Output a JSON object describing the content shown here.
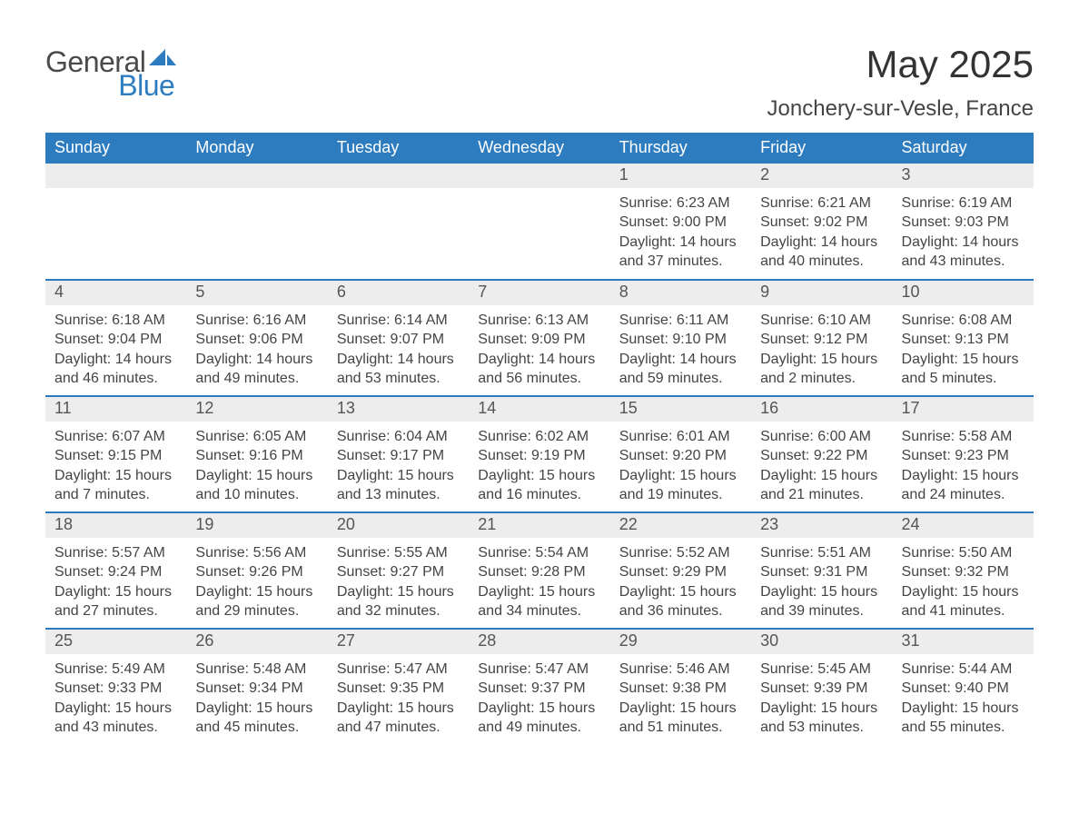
{
  "brand": {
    "word1": "General",
    "word2": "Blue",
    "icon_color": "#2d7cc0"
  },
  "title": "May 2025",
  "location": "Jonchery-sur-Vesle, France",
  "colors": {
    "header_bg": "#2d7cc0",
    "header_text": "#ffffff",
    "daynum_bg": "#ededed",
    "daynum_text": "#555555",
    "body_text": "#444444",
    "row_divider": "#2d7cc0",
    "page_bg": "#ffffff"
  },
  "day_headers": [
    "Sunday",
    "Monday",
    "Tuesday",
    "Wednesday",
    "Thursday",
    "Friday",
    "Saturday"
  ],
  "weeks": [
    [
      null,
      null,
      null,
      null,
      {
        "n": "1",
        "sunrise": "6:23 AM",
        "sunset": "9:00 PM",
        "dl_h": 14,
        "dl_m": 37
      },
      {
        "n": "2",
        "sunrise": "6:21 AM",
        "sunset": "9:02 PM",
        "dl_h": 14,
        "dl_m": 40
      },
      {
        "n": "3",
        "sunrise": "6:19 AM",
        "sunset": "9:03 PM",
        "dl_h": 14,
        "dl_m": 43
      }
    ],
    [
      {
        "n": "4",
        "sunrise": "6:18 AM",
        "sunset": "9:04 PM",
        "dl_h": 14,
        "dl_m": 46
      },
      {
        "n": "5",
        "sunrise": "6:16 AM",
        "sunset": "9:06 PM",
        "dl_h": 14,
        "dl_m": 49
      },
      {
        "n": "6",
        "sunrise": "6:14 AM",
        "sunset": "9:07 PM",
        "dl_h": 14,
        "dl_m": 53
      },
      {
        "n": "7",
        "sunrise": "6:13 AM",
        "sunset": "9:09 PM",
        "dl_h": 14,
        "dl_m": 56
      },
      {
        "n": "8",
        "sunrise": "6:11 AM",
        "sunset": "9:10 PM",
        "dl_h": 14,
        "dl_m": 59
      },
      {
        "n": "9",
        "sunrise": "6:10 AM",
        "sunset": "9:12 PM",
        "dl_h": 15,
        "dl_m": 2
      },
      {
        "n": "10",
        "sunrise": "6:08 AM",
        "sunset": "9:13 PM",
        "dl_h": 15,
        "dl_m": 5
      }
    ],
    [
      {
        "n": "11",
        "sunrise": "6:07 AM",
        "sunset": "9:15 PM",
        "dl_h": 15,
        "dl_m": 7
      },
      {
        "n": "12",
        "sunrise": "6:05 AM",
        "sunset": "9:16 PM",
        "dl_h": 15,
        "dl_m": 10
      },
      {
        "n": "13",
        "sunrise": "6:04 AM",
        "sunset": "9:17 PM",
        "dl_h": 15,
        "dl_m": 13
      },
      {
        "n": "14",
        "sunrise": "6:02 AM",
        "sunset": "9:19 PM",
        "dl_h": 15,
        "dl_m": 16
      },
      {
        "n": "15",
        "sunrise": "6:01 AM",
        "sunset": "9:20 PM",
        "dl_h": 15,
        "dl_m": 19
      },
      {
        "n": "16",
        "sunrise": "6:00 AM",
        "sunset": "9:22 PM",
        "dl_h": 15,
        "dl_m": 21
      },
      {
        "n": "17",
        "sunrise": "5:58 AM",
        "sunset": "9:23 PM",
        "dl_h": 15,
        "dl_m": 24
      }
    ],
    [
      {
        "n": "18",
        "sunrise": "5:57 AM",
        "sunset": "9:24 PM",
        "dl_h": 15,
        "dl_m": 27
      },
      {
        "n": "19",
        "sunrise": "5:56 AM",
        "sunset": "9:26 PM",
        "dl_h": 15,
        "dl_m": 29
      },
      {
        "n": "20",
        "sunrise": "5:55 AM",
        "sunset": "9:27 PM",
        "dl_h": 15,
        "dl_m": 32
      },
      {
        "n": "21",
        "sunrise": "5:54 AM",
        "sunset": "9:28 PM",
        "dl_h": 15,
        "dl_m": 34
      },
      {
        "n": "22",
        "sunrise": "5:52 AM",
        "sunset": "9:29 PM",
        "dl_h": 15,
        "dl_m": 36
      },
      {
        "n": "23",
        "sunrise": "5:51 AM",
        "sunset": "9:31 PM",
        "dl_h": 15,
        "dl_m": 39
      },
      {
        "n": "24",
        "sunrise": "5:50 AM",
        "sunset": "9:32 PM",
        "dl_h": 15,
        "dl_m": 41
      }
    ],
    [
      {
        "n": "25",
        "sunrise": "5:49 AM",
        "sunset": "9:33 PM",
        "dl_h": 15,
        "dl_m": 43
      },
      {
        "n": "26",
        "sunrise": "5:48 AM",
        "sunset": "9:34 PM",
        "dl_h": 15,
        "dl_m": 45
      },
      {
        "n": "27",
        "sunrise": "5:47 AM",
        "sunset": "9:35 PM",
        "dl_h": 15,
        "dl_m": 47
      },
      {
        "n": "28",
        "sunrise": "5:47 AM",
        "sunset": "9:37 PM",
        "dl_h": 15,
        "dl_m": 49
      },
      {
        "n": "29",
        "sunrise": "5:46 AM",
        "sunset": "9:38 PM",
        "dl_h": 15,
        "dl_m": 51
      },
      {
        "n": "30",
        "sunrise": "5:45 AM",
        "sunset": "9:39 PM",
        "dl_h": 15,
        "dl_m": 53
      },
      {
        "n": "31",
        "sunrise": "5:44 AM",
        "sunset": "9:40 PM",
        "dl_h": 15,
        "dl_m": 55
      }
    ]
  ],
  "labels": {
    "sunrise": "Sunrise:",
    "sunset": "Sunset:",
    "daylight_prefix": "Daylight:",
    "hours_word": "hours",
    "and_word": "and",
    "minutes_word": "minutes."
  }
}
